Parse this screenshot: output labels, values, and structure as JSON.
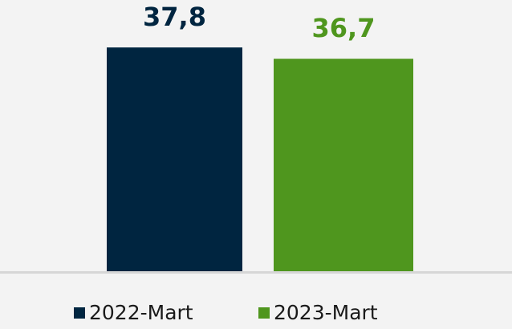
{
  "chart_data": {
    "type": "bar",
    "series": [
      {
        "name": "2022-Mart",
        "color": "#002540",
        "values": [
          37.8
        ],
        "value_labels": [
          "37,8"
        ]
      },
      {
        "name": "2023-Mart",
        "color": "#4f961e",
        "values": [
          36.7
        ],
        "value_labels": [
          "36,7"
        ]
      }
    ],
    "ylim": [
      16,
      40
    ]
  }
}
